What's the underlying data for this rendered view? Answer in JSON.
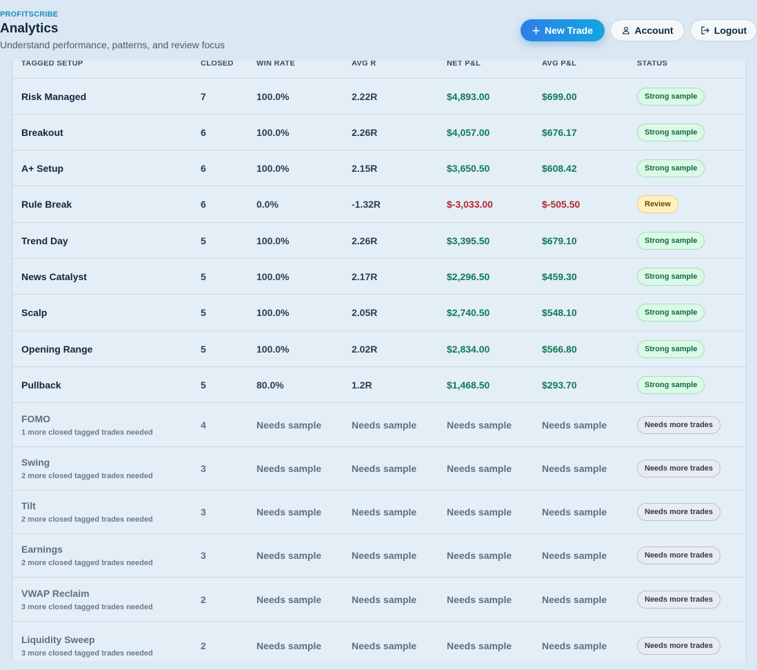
{
  "header": {
    "brand": "PROFITSCRIBE",
    "title": "Analytics",
    "subtitle": "Understand performance, patterns, and review focus",
    "buttons": {
      "new_trade": "New Trade",
      "account": "Account",
      "logout": "Logout"
    },
    "icons": {
      "new_trade": "plus-icon",
      "account": "user-icon",
      "logout": "logout-icon"
    }
  },
  "table": {
    "columns": [
      "TAGGED SETUP",
      "CLOSED",
      "WIN RATE",
      "AVG R",
      "NET P&L",
      "AVG P&L",
      "STATUS"
    ],
    "rows": [
      {
        "setup": "Risk Managed",
        "closed": "7",
        "win_rate": "100.0%",
        "avg_r": "2.22R",
        "net_pl": "$4,893.00",
        "avg_pl": "$699.00",
        "status": "Strong sample",
        "kind": "strong"
      },
      {
        "setup": "Breakout",
        "closed": "6",
        "win_rate": "100.0%",
        "avg_r": "2.26R",
        "net_pl": "$4,057.00",
        "avg_pl": "$676.17",
        "status": "Strong sample",
        "kind": "strong"
      },
      {
        "setup": "A+ Setup",
        "closed": "6",
        "win_rate": "100.0%",
        "avg_r": "2.15R",
        "net_pl": "$3,650.50",
        "avg_pl": "$608.42",
        "status": "Strong sample",
        "kind": "strong"
      },
      {
        "setup": "Rule Break",
        "closed": "6",
        "win_rate": "0.0%",
        "avg_r": "-1.32R",
        "net_pl": "$-3,033.00",
        "avg_pl": "$-505.50",
        "status": "Review",
        "kind": "review"
      },
      {
        "setup": "Trend Day",
        "closed": "5",
        "win_rate": "100.0%",
        "avg_r": "2.26R",
        "net_pl": "$3,395.50",
        "avg_pl": "$679.10",
        "status": "Strong sample",
        "kind": "strong"
      },
      {
        "setup": "News Catalyst",
        "closed": "5",
        "win_rate": "100.0%",
        "avg_r": "2.17R",
        "net_pl": "$2,296.50",
        "avg_pl": "$459.30",
        "status": "Strong sample",
        "kind": "strong"
      },
      {
        "setup": "Scalp",
        "closed": "5",
        "win_rate": "100.0%",
        "avg_r": "2.05R",
        "net_pl": "$2,740.50",
        "avg_pl": "$548.10",
        "status": "Strong sample",
        "kind": "strong"
      },
      {
        "setup": "Opening Range",
        "closed": "5",
        "win_rate": "100.0%",
        "avg_r": "2.02R",
        "net_pl": "$2,834.00",
        "avg_pl": "$566.80",
        "status": "Strong sample",
        "kind": "strong"
      },
      {
        "setup": "Pullback",
        "closed": "5",
        "win_rate": "80.0%",
        "avg_r": "1.2R",
        "net_pl": "$1,468.50",
        "avg_pl": "$293.70",
        "status": "Strong sample",
        "kind": "strong"
      },
      {
        "setup": "FOMO",
        "hint": "1 more closed tagged trades needed",
        "closed": "4",
        "win_rate": "Needs sample",
        "avg_r": "Needs sample",
        "net_pl": "Needs sample",
        "avg_pl": "Needs sample",
        "status": "Needs more trades",
        "kind": "needs"
      },
      {
        "setup": "Swing",
        "hint": "2 more closed tagged trades needed",
        "closed": "3",
        "win_rate": "Needs sample",
        "avg_r": "Needs sample",
        "net_pl": "Needs sample",
        "avg_pl": "Needs sample",
        "status": "Needs more trades",
        "kind": "needs"
      },
      {
        "setup": "Tilt",
        "hint": "2 more closed tagged trades needed",
        "closed": "3",
        "win_rate": "Needs sample",
        "avg_r": "Needs sample",
        "net_pl": "Needs sample",
        "avg_pl": "Needs sample",
        "status": "Needs more trades",
        "kind": "needs"
      },
      {
        "setup": "Earnings",
        "hint": "2 more closed tagged trades needed",
        "closed": "3",
        "win_rate": "Needs sample",
        "avg_r": "Needs sample",
        "net_pl": "Needs sample",
        "avg_pl": "Needs sample",
        "status": "Needs more trades",
        "kind": "needs"
      },
      {
        "setup": "VWAP Reclaim",
        "hint": "3 more closed tagged trades needed",
        "closed": "2",
        "win_rate": "Needs sample",
        "avg_r": "Needs sample",
        "net_pl": "Needs sample",
        "avg_pl": "Needs sample",
        "status": "Needs more trades",
        "kind": "needs"
      },
      {
        "setup": "Liquidity Sweep",
        "hint": "3 more closed tagged trades needed",
        "closed": "2",
        "win_rate": "Needs sample",
        "avg_r": "Needs sample",
        "net_pl": "Needs sample",
        "avg_pl": "Needs sample",
        "status": "Needs more trades",
        "kind": "needs"
      }
    ]
  }
}
